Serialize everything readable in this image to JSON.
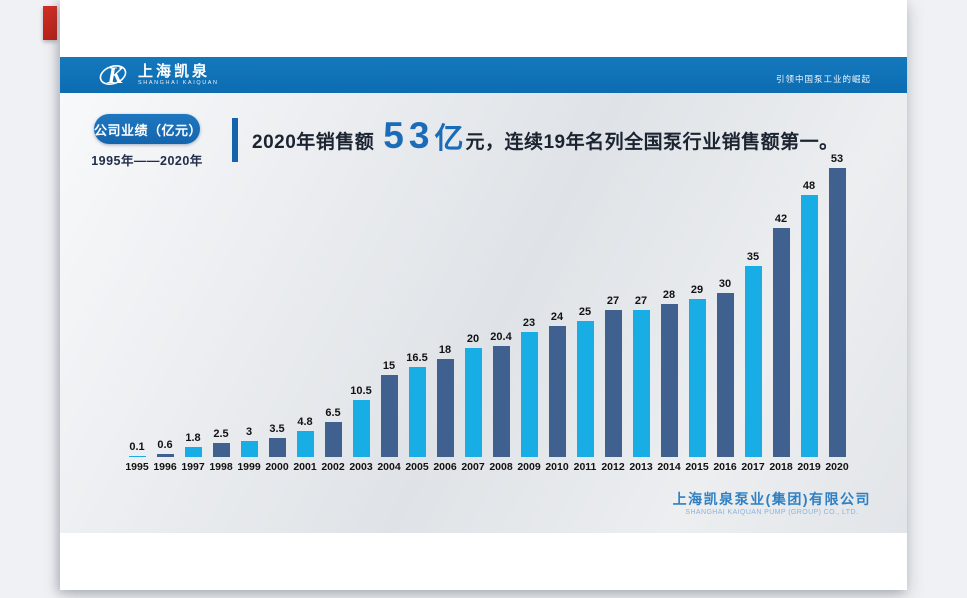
{
  "slide": {
    "header": {
      "brand_cn": "上海凯泉",
      "brand_en": "SHANGHAI KAIQUAN",
      "slogan": "引领中国泵工业的崛起"
    },
    "badge": {
      "label": "公司业绩（亿元）",
      "range": "1995年——2020年"
    },
    "headline": {
      "prefix": "2020年销售额",
      "big_number": "53",
      "big_unit": "亿",
      "suffix": "元，连续19年名列全国泵行业销售额第一。"
    },
    "footer": {
      "company_cn": "上海凯泉泵业(集团)有限公司",
      "company_en": "SHANGHAI KAIQUAN PUMP (GROUP) CO., LTD."
    }
  },
  "colors": {
    "header_blue": "#0f72b8",
    "badge_blue": "#1668b0",
    "accent_blue": "#1a6cb8",
    "ribbon_red": "#c92b20",
    "bar_light": "#19ade6",
    "bar_dark": "#40608f"
  },
  "chart_data": {
    "type": "bar",
    "title": "公司业绩（亿元）",
    "unit": "亿元",
    "categories": [
      "1995",
      "1996",
      "1997",
      "1998",
      "1999",
      "2000",
      "2001",
      "2002",
      "2003",
      "2004",
      "2005",
      "2006",
      "2007",
      "2008",
      "2009",
      "2010",
      "2011",
      "2012",
      "2013",
      "2014",
      "2015",
      "2016",
      "2017",
      "2018",
      "2019",
      "2020"
    ],
    "values": [
      0.1,
      0.6,
      1.8,
      2.5,
      3,
      3.5,
      4.8,
      6.5,
      10.5,
      15,
      16.5,
      18,
      20,
      20.4,
      23,
      24,
      25,
      27,
      27,
      28,
      29,
      30,
      35,
      42,
      48,
      53
    ],
    "ylim": [
      0,
      55
    ],
    "grid": false,
    "legend": false,
    "value_labels": true,
    "bar_color_alternation": [
      "#19ade6",
      "#40608f"
    ]
  }
}
